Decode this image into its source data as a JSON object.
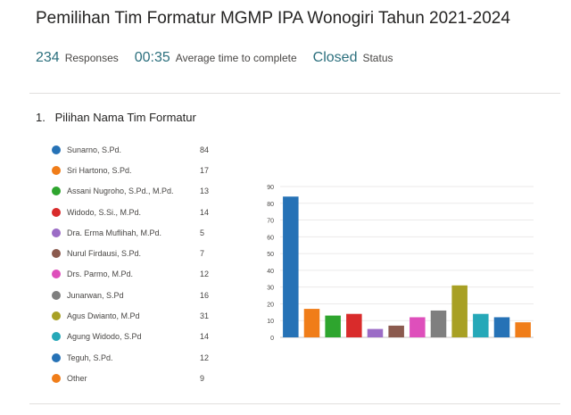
{
  "form": {
    "title": "Pemilihan Tim Formatur MGMP IPA Wonogiri Tahun 2021-2024",
    "responses_value": "234",
    "responses_label": "Responses",
    "avg_time_value": "00:35",
    "avg_time_label": "Average time to complete",
    "status_value": "Closed",
    "status_label": "Status"
  },
  "question": {
    "number": "1.",
    "title": "Pilihan Nama Tim Formatur"
  },
  "chart_data": {
    "type": "bar",
    "categories": [
      "Sunarno, S.Pd.",
      "Sri Hartono, S.Pd.",
      "Assani Nugroho, S.Pd., M.Pd.",
      "Widodo, S.Si., M.Pd.",
      "Dra. Erma Muflihah, M.Pd.",
      "Nurul Firdausi, S.Pd.",
      "Drs. Parmo, M.Pd.",
      "Junarwan, S.Pd",
      "Agus Dwianto, M.Pd",
      "Agung Widodo, S.Pd",
      "Teguh, S.Pd.",
      "Other"
    ],
    "values": [
      84,
      17,
      13,
      14,
      5,
      7,
      12,
      16,
      31,
      14,
      12,
      9
    ],
    "colors": [
      "#2672b6",
      "#f07d19",
      "#2ea52e",
      "#d92b2b",
      "#9b6cc6",
      "#8b5a4e",
      "#de4fbb",
      "#7f7f7f",
      "#a8a024",
      "#26a8b8",
      "#2672b6",
      "#f07d19"
    ],
    "yticks": [
      "0",
      "10",
      "20",
      "30",
      "40",
      "50",
      "60",
      "70",
      "80",
      "90"
    ],
    "ylim": [
      0,
      90
    ],
    "grid": true,
    "legend": "left"
  }
}
